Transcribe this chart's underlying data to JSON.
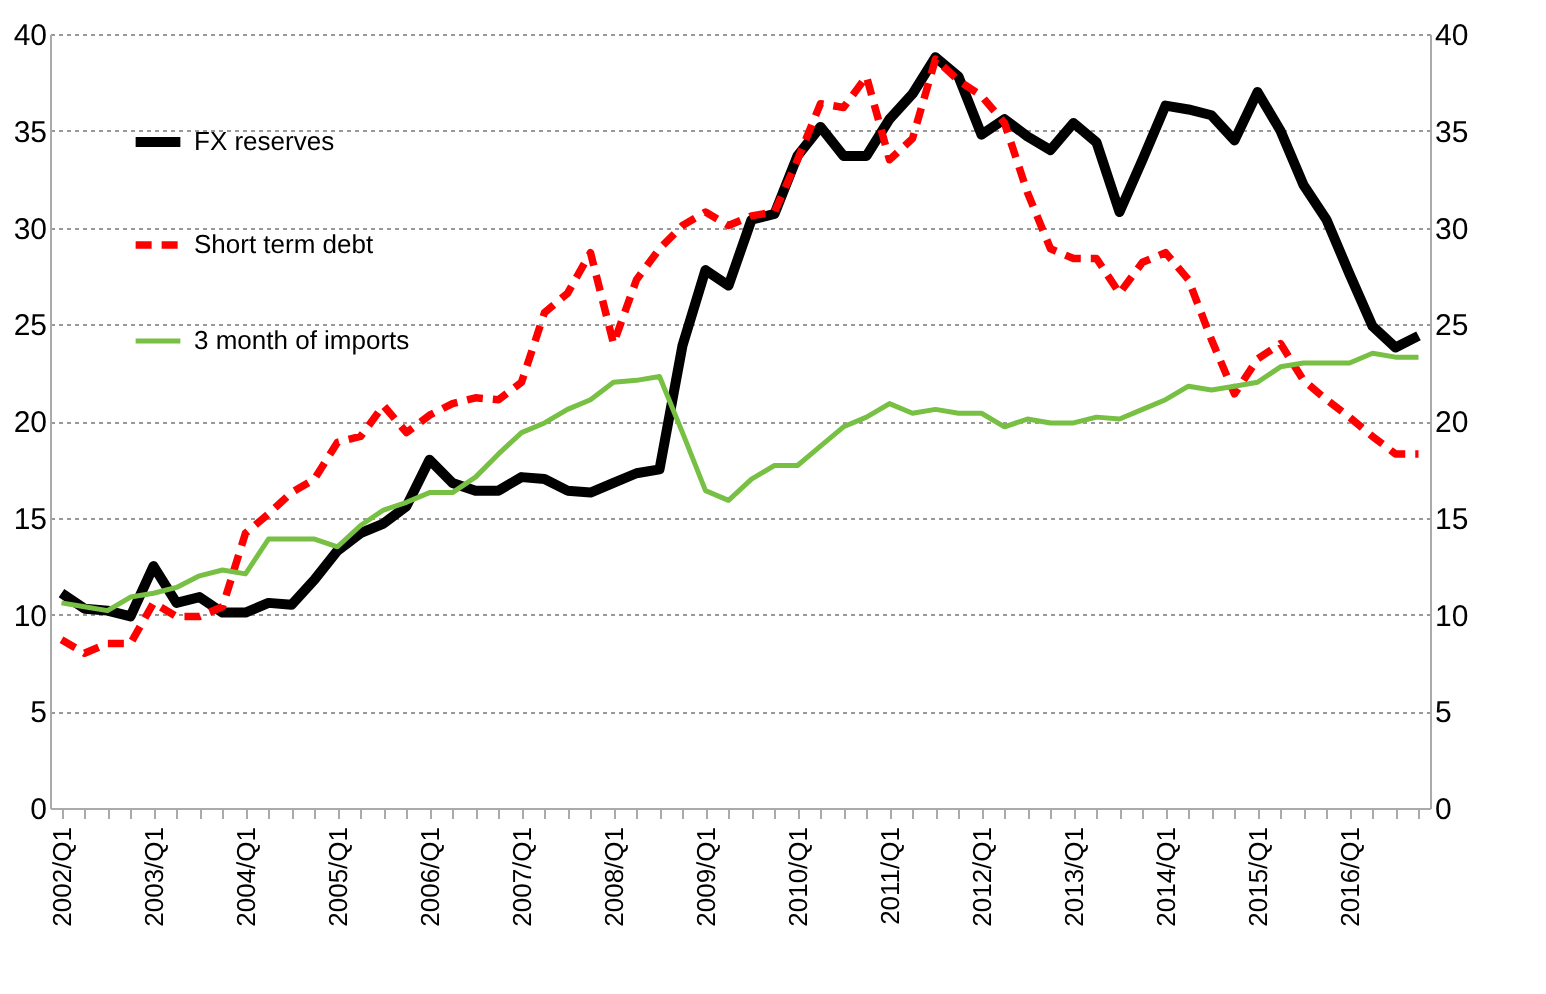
{
  "chart_data": {
    "type": "line",
    "categories": [
      "2002/Q1",
      null,
      null,
      null,
      "2003/Q1",
      null,
      null,
      null,
      "2004/Q1",
      null,
      null,
      null,
      "2005/Q1",
      null,
      null,
      null,
      "2006/Q1",
      null,
      null,
      null,
      "2007/Q1",
      null,
      null,
      null,
      "2008/Q1",
      null,
      null,
      null,
      "2009/Q1",
      null,
      null,
      null,
      "2010/Q1",
      null,
      null,
      null,
      "2011/Q1",
      null,
      null,
      null,
      "2012/Q1",
      null,
      null,
      null,
      "2013/Q1",
      null,
      null,
      null,
      "2014/Q1",
      null,
      null,
      null,
      "2015/Q1",
      null,
      null,
      null,
      "2016/Q1",
      null,
      null,
      null
    ],
    "series": [
      {
        "name": "FX reserves",
        "color": "#000000",
        "line_style": "solid",
        "values": [
          11.1,
          10.3,
          10.2,
          9.9,
          12.5,
          10.6,
          10.9,
          10.1,
          10.1,
          10.6,
          10.5,
          11.8,
          13.3,
          14.2,
          14.7,
          15.6,
          18,
          16.8,
          16.4,
          16.4,
          17.1,
          17,
          16.4,
          16.3,
          16.8,
          17.3,
          17.5,
          23.9,
          27.8,
          27,
          30.4,
          30.7,
          33.7,
          35.2,
          33.7,
          33.7,
          35.6,
          36.9,
          38.8,
          37.8,
          34.8,
          35.6,
          34.7,
          34,
          35.4,
          34.4,
          30.8,
          33.5,
          36.3,
          36.1,
          35.8,
          34.5,
          37,
          35,
          32.2,
          30.4,
          27.6,
          24.9,
          23.8,
          24.4
        ]
      },
      {
        "name": "Short term debt",
        "color": "#ff0000",
        "line_style": "dashed",
        "values": [
          8.7,
          8,
          8.5,
          8.5,
          10.6,
          9.9,
          9.9,
          10.4,
          14.2,
          15.2,
          16.3,
          17,
          18.9,
          19.2,
          20.8,
          19.4,
          20.3,
          20.9,
          21.2,
          21.1,
          22,
          25.6,
          26.6,
          28.7,
          24,
          27.3,
          28.9,
          30.1,
          30.8,
          30.1,
          30.6,
          30.8,
          33.5,
          36.4,
          36.2,
          37.8,
          33.5,
          34.6,
          38.7,
          37.6,
          36.8,
          35.4,
          31.8,
          28.9,
          28.4,
          28.4,
          26.6,
          28.2,
          28.7,
          27.3,
          24.2,
          21.4,
          23.2,
          24,
          22.1,
          21.1,
          20.2,
          19.2,
          18.3,
          18.3
        ]
      },
      {
        "name": "3 month of imports",
        "color": "#77c043",
        "line_style": "solid",
        "values": [
          10.6,
          10.4,
          10.2,
          10.9,
          11.1,
          11.4,
          12,
          12.3,
          12.1,
          13.9,
          13.9,
          13.9,
          13.5,
          14.6,
          15.4,
          15.8,
          16.3,
          16.3,
          17.1,
          18.3,
          19.4,
          19.9,
          20.6,
          21.1,
          22,
          22.1,
          22.3,
          19.4,
          16.4,
          15.9,
          17,
          17.7,
          17.7,
          18.7,
          19.7,
          20.2,
          20.9,
          20.4,
          20.6,
          20.4,
          20.4,
          19.7,
          20.1,
          19.9,
          19.9,
          20.2,
          20.1,
          20.6,
          21.1,
          21.8,
          21.6,
          21.8,
          22,
          22.8,
          23,
          23,
          23,
          23.5,
          23.3,
          23.3
        ]
      }
    ],
    "ylim": [
      0,
      40
    ],
    "yticks": [
      0,
      5,
      10,
      15,
      20,
      25,
      30,
      35,
      40
    ],
    "y2lim": [
      0,
      40
    ],
    "y2ticks": [
      0,
      5,
      10,
      15,
      20,
      25,
      30,
      35,
      40
    ],
    "grid": "y",
    "legend": "top left"
  }
}
